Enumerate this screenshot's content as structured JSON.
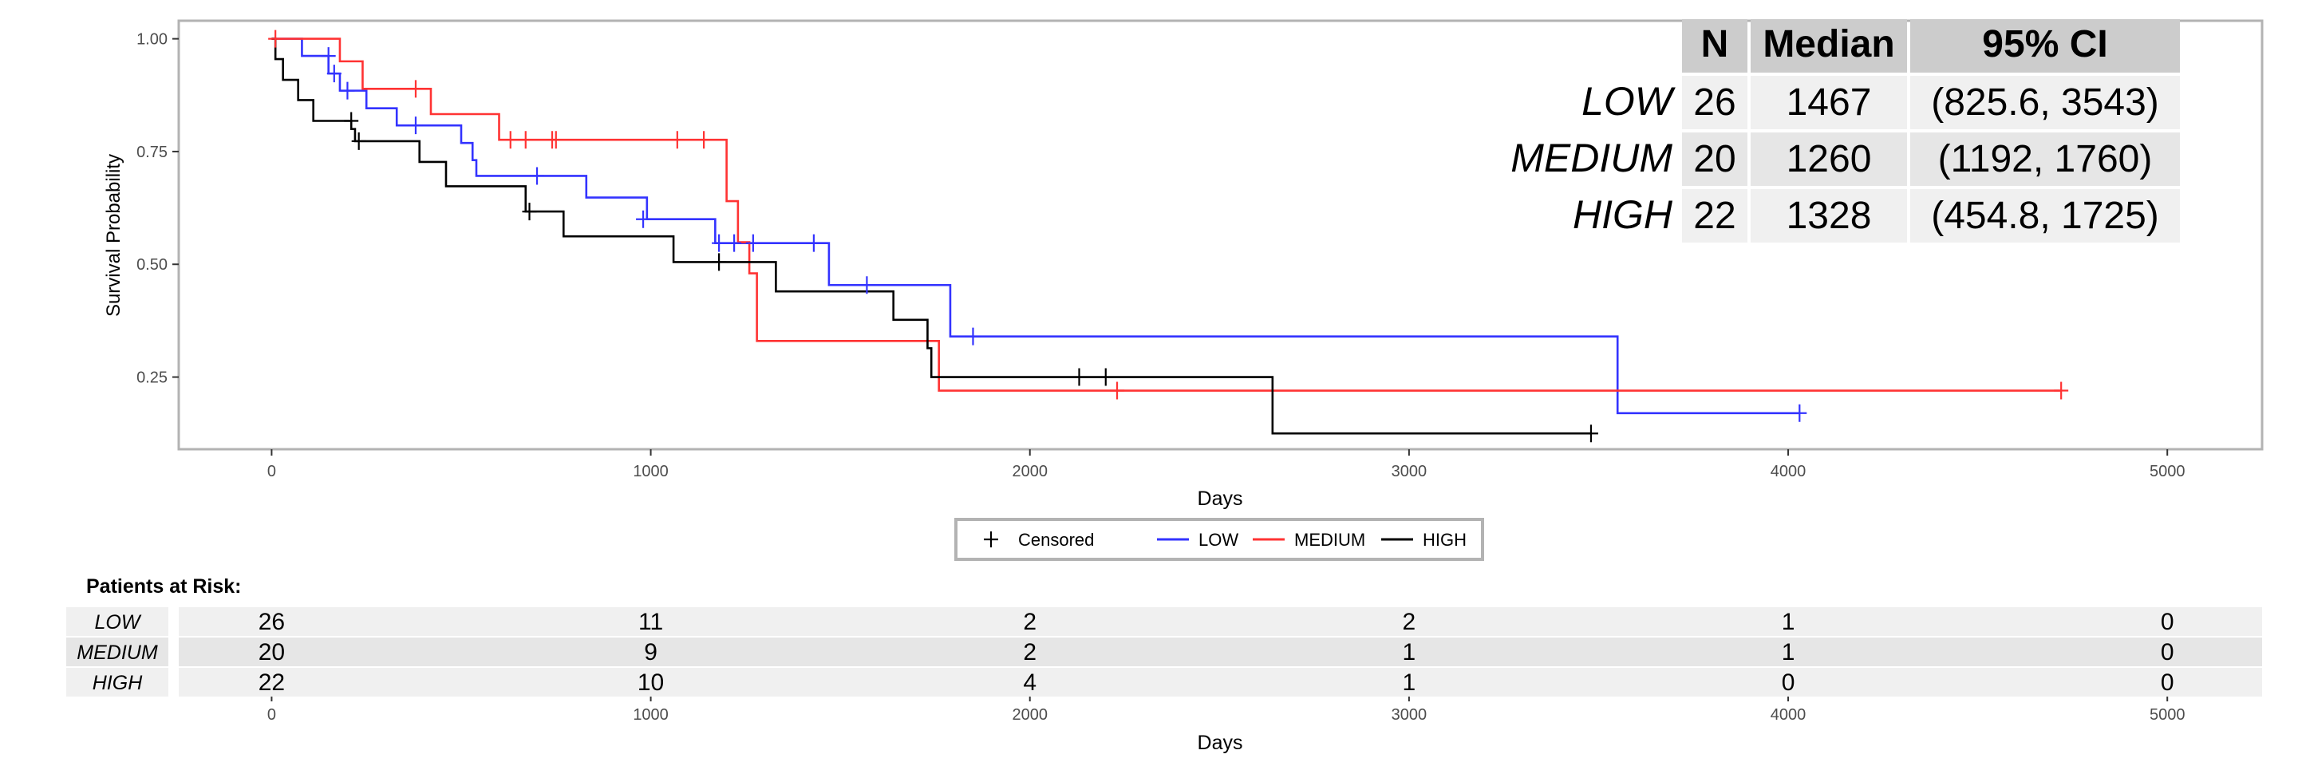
{
  "chart_data": {
    "type": "line",
    "subtype": "kaplan-meier",
    "xlabel": "Days",
    "ylabel": "Survival Probability",
    "xlim": [
      -245,
      5250
    ],
    "ylim": [
      0.09,
      1.04
    ],
    "x_ticks": [
      0,
      1000,
      2000,
      3000,
      4000,
      5000
    ],
    "x_tick_labels": [
      "0",
      "1000",
      "2000",
      "3000",
      "4000",
      "5000"
    ],
    "y_ticks": [
      0.25,
      0.5,
      0.75,
      1.0
    ],
    "y_tick_labels": [
      "0.25",
      "0.50",
      "0.75",
      "1.00"
    ],
    "grid": false,
    "series": [
      {
        "name": "LOW",
        "color": "#3333ff",
        "steps": [
          [
            0,
            1.0
          ],
          [
            80,
            0.962
          ],
          [
            150,
            0.923
          ],
          [
            180,
            0.885
          ],
          [
            250,
            0.846
          ],
          [
            330,
            0.808
          ],
          [
            500,
            0.769
          ],
          [
            530,
            0.731
          ],
          [
            540,
            0.696
          ],
          [
            830,
            0.648
          ],
          [
            990,
            0.6
          ],
          [
            1170,
            0.547
          ],
          [
            1470,
            0.454
          ],
          [
            1790,
            0.34
          ],
          [
            3550,
            0.17
          ],
          [
            4030,
            0.17
          ]
        ],
        "censored": [
          [
            150,
            0.962
          ],
          [
            165,
            0.923
          ],
          [
            200,
            0.885
          ],
          [
            380,
            0.808
          ],
          [
            700,
            0.696
          ],
          [
            980,
            0.6
          ],
          [
            1180,
            0.547
          ],
          [
            1220,
            0.547
          ],
          [
            1270,
            0.547
          ],
          [
            1430,
            0.547
          ],
          [
            1570,
            0.454
          ],
          [
            1850,
            0.34
          ],
          [
            4030,
            0.17
          ]
        ]
      },
      {
        "name": "MEDIUM",
        "color": "#ff3333",
        "steps": [
          [
            0,
            1.0
          ],
          [
            180,
            0.95
          ],
          [
            240,
            0.889
          ],
          [
            420,
            0.833
          ],
          [
            600,
            0.776
          ],
          [
            1200,
            0.64
          ],
          [
            1230,
            0.549
          ],
          [
            1260,
            0.48
          ],
          [
            1280,
            0.33
          ],
          [
            1760,
            0.22
          ],
          [
            4720,
            0.22
          ]
        ],
        "censored": [
          [
            10,
            1.0
          ],
          [
            380,
            0.889
          ],
          [
            630,
            0.776
          ],
          [
            670,
            0.776
          ],
          [
            740,
            0.776
          ],
          [
            750,
            0.776
          ],
          [
            1070,
            0.776
          ],
          [
            1140,
            0.776
          ],
          [
            2230,
            0.22
          ],
          [
            4720,
            0.22
          ]
        ]
      },
      {
        "name": "HIGH",
        "color": "#000000",
        "steps": [
          [
            0,
            1.0
          ],
          [
            10,
            0.955
          ],
          [
            30,
            0.909
          ],
          [
            70,
            0.864
          ],
          [
            110,
            0.818
          ],
          [
            210,
            0.8
          ],
          [
            220,
            0.773
          ],
          [
            390,
            0.727
          ],
          [
            460,
            0.673
          ],
          [
            670,
            0.617
          ],
          [
            770,
            0.562
          ],
          [
            1060,
            0.505
          ],
          [
            1330,
            0.44
          ],
          [
            1640,
            0.377
          ],
          [
            1730,
            0.314
          ],
          [
            1740,
            0.25
          ],
          [
            2640,
            0.125
          ],
          [
            3480,
            0.125
          ]
        ],
        "censored": [
          [
            210,
            0.818
          ],
          [
            230,
            0.773
          ],
          [
            680,
            0.617
          ],
          [
            1180,
            0.505
          ],
          [
            2130,
            0.25
          ],
          [
            2200,
            0.25
          ],
          [
            3480,
            0.125
          ]
        ]
      }
    ],
    "legend": {
      "placement": "bottom",
      "censored_label": "Censored",
      "items": [
        "LOW",
        "MEDIUM",
        "HIGH"
      ]
    },
    "summary_table": {
      "headers": [
        "N",
        "Median",
        "95% CI"
      ],
      "rows": [
        {
          "group": "LOW",
          "n": "26",
          "median": "1467",
          "ci": "(825.6, 3543)"
        },
        {
          "group": "MEDIUM",
          "n": "20",
          "median": "1260",
          "ci": "(1192, 1760)"
        },
        {
          "group": "HIGH",
          "n": "22",
          "median": "1328",
          "ci": "(454.8, 1725)"
        }
      ]
    },
    "risk_table": {
      "title": "Patients at Risk:",
      "times": [
        0,
        1000,
        2000,
        3000,
        4000,
        5000
      ],
      "xlabel": "Days",
      "rows": [
        {
          "group": "LOW",
          "counts": [
            26,
            11,
            2,
            2,
            1,
            0
          ]
        },
        {
          "group": "MEDIUM",
          "counts": [
            20,
            9,
            2,
            1,
            1,
            0
          ]
        },
        {
          "group": "HIGH",
          "counts": [
            22,
            10,
            4,
            1,
            0,
            0
          ]
        }
      ]
    }
  }
}
